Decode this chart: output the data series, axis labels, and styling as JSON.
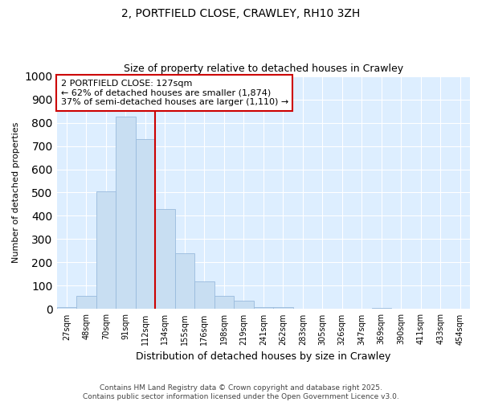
{
  "title_line1": "2, PORTFIELD CLOSE, CRAWLEY, RH10 3ZH",
  "title_line2": "Size of property relative to detached houses in Crawley",
  "categories": [
    "27sqm",
    "48sqm",
    "70sqm",
    "91sqm",
    "112sqm",
    "134sqm",
    "155sqm",
    "176sqm",
    "198sqm",
    "219sqm",
    "241sqm",
    "262sqm",
    "283sqm",
    "305sqm",
    "326sqm",
    "347sqm",
    "369sqm",
    "390sqm",
    "411sqm",
    "433sqm",
    "454sqm"
  ],
  "values": [
    8,
    57,
    505,
    825,
    728,
    430,
    240,
    118,
    57,
    35,
    10,
    10,
    3,
    3,
    1,
    0,
    5,
    0,
    0,
    0,
    0
  ],
  "bar_color": "#c8def2",
  "bar_edge_color": "#99bbdd",
  "vline_color": "#cc0000",
  "vline_pos": 4.5,
  "box_edge_color": "#cc0000",
  "annotation_text_line1": "2 PORTFIELD CLOSE: 127sqm",
  "annotation_text_line2": "← 62% of detached houses are smaller (1,874)",
  "annotation_text_line3": "37% of semi-detached houses are larger (1,110) →",
  "ylabel": "Number of detached properties",
  "xlabel": "Distribution of detached houses by size in Crawley",
  "ylim": [
    0,
    1000
  ],
  "yticks": [
    0,
    100,
    200,
    300,
    400,
    500,
    600,
    700,
    800,
    900,
    1000
  ],
  "footnote_line1": "Contains HM Land Registry data © Crown copyright and database right 2025.",
  "footnote_line2": "Contains public sector information licensed under the Open Government Licence v3.0.",
  "fig_bg_color": "#ffffff",
  "plot_bg_color": "#ddeeff"
}
